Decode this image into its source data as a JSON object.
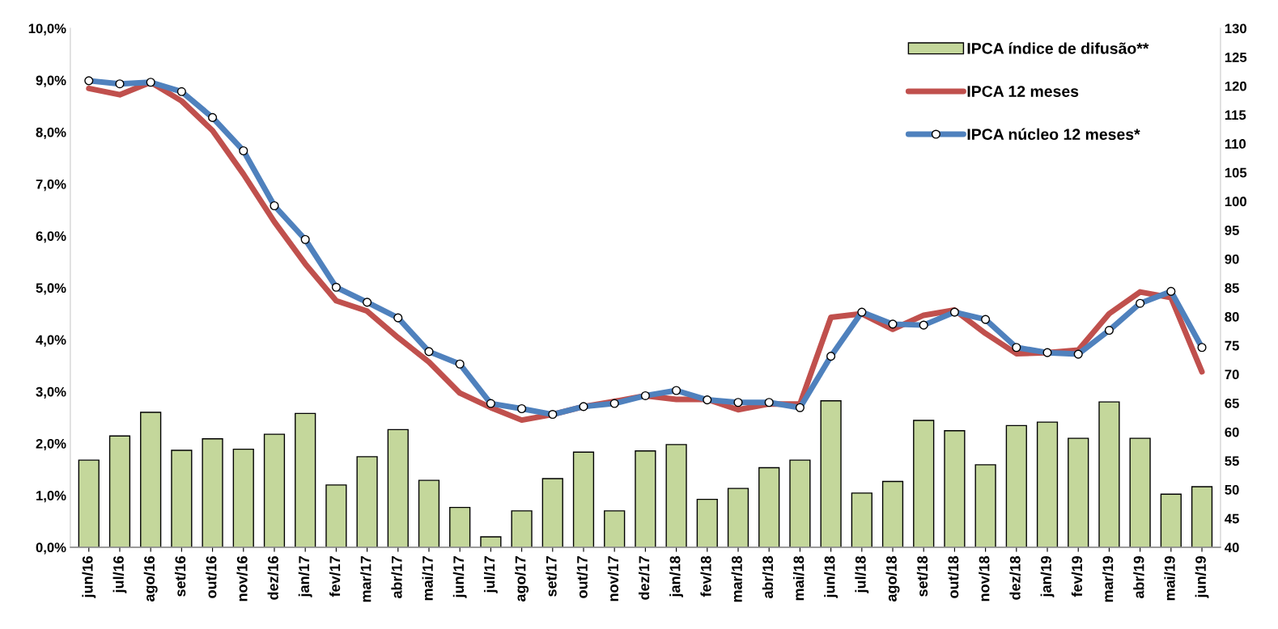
{
  "chart_data": {
    "type": "bar",
    "categories": [
      "jun/16",
      "jul/16",
      "ago/16",
      "set/16",
      "out/16",
      "nov/16",
      "dez/16",
      "jan/17",
      "fev/17",
      "mar/17",
      "abr/17",
      "mai/17",
      "jun/17",
      "jul/17",
      "ago/17",
      "set/17",
      "out/17",
      "nov/17",
      "dez/17",
      "jan/18",
      "fev/18",
      "mar/18",
      "abr/18",
      "mai/18",
      "jun/18",
      "jul/18",
      "ago/18",
      "set/18",
      "out/18",
      "nov/18",
      "dez/18",
      "jan/19",
      "fev/19",
      "mar/19",
      "abr/19",
      "mai/19",
      "jun/19"
    ],
    "series": [
      {
        "name": "IPCA índice de difusão**",
        "axis": "y2",
        "color": "#c4d79b",
        "values": [
          55.1,
          59.3,
          63.4,
          56.8,
          58.8,
          57.0,
          59.6,
          63.2,
          50.8,
          55.7,
          60.4,
          51.6,
          46.9,
          41.8,
          46.3,
          51.9,
          56.5,
          46.3,
          56.7,
          57.8,
          48.3,
          50.2,
          53.8,
          55.1,
          65.4,
          49.4,
          51.4,
          62.0,
          60.2,
          54.3,
          61.1,
          61.7,
          58.9,
          65.2,
          58.9,
          49.2,
          50.5
        ]
      },
      {
        "name": "IPCA 12 meses",
        "type": "line",
        "color": "#c0504d",
        "marker": "none",
        "line_style": "solid",
        "values": [
          8.84,
          8.72,
          8.96,
          8.6,
          8.03,
          7.19,
          6.27,
          5.46,
          4.75,
          4.55,
          4.04,
          3.57,
          2.97,
          2.69,
          2.45,
          2.56,
          2.71,
          2.81,
          2.92,
          2.85,
          2.85,
          2.65,
          2.76,
          2.76,
          4.43,
          4.5,
          4.2,
          4.47,
          4.57,
          4.12,
          3.73,
          3.75,
          3.8,
          4.5,
          4.92,
          4.81,
          3.38
        ]
      },
      {
        "name": "IPCA núcleo 12 meses*",
        "type": "line",
        "color": "#4f81bd",
        "marker": "circle",
        "line_style": "solid",
        "values": [
          8.99,
          8.93,
          8.96,
          8.78,
          8.28,
          7.64,
          6.58,
          5.93,
          5.01,
          4.72,
          4.42,
          3.77,
          3.53,
          2.77,
          2.67,
          2.56,
          2.71,
          2.77,
          2.92,
          3.02,
          2.84,
          2.79,
          2.79,
          2.69,
          3.68,
          4.53,
          4.3,
          4.28,
          4.53,
          4.39,
          3.85,
          3.75,
          3.72,
          4.18,
          4.7,
          4.93,
          3.85
        ]
      }
    ],
    "ylim": [
      0,
      10
    ],
    "yticks": [
      {
        "value": 0,
        "label": "0,0%"
      },
      {
        "value": 1,
        "label": "1,0%"
      },
      {
        "value": 2,
        "label": "2,0%"
      },
      {
        "value": 3,
        "label": "3,0%"
      },
      {
        "value": 4,
        "label": "4,0%"
      },
      {
        "value": 5,
        "label": "5,0%"
      },
      {
        "value": 6,
        "label": "6,0%"
      },
      {
        "value": 7,
        "label": "7,0%"
      },
      {
        "value": 8,
        "label": "8,0%"
      },
      {
        "value": 9,
        "label": "9,0%"
      },
      {
        "value": 10,
        "label": "10,0%"
      }
    ],
    "y2lim": [
      40,
      130
    ],
    "y2ticks": [
      40,
      45,
      50,
      55,
      60,
      65,
      70,
      75,
      80,
      85,
      90,
      95,
      100,
      105,
      110,
      115,
      120,
      125,
      130
    ],
    "grid": false,
    "legend": "top right"
  }
}
